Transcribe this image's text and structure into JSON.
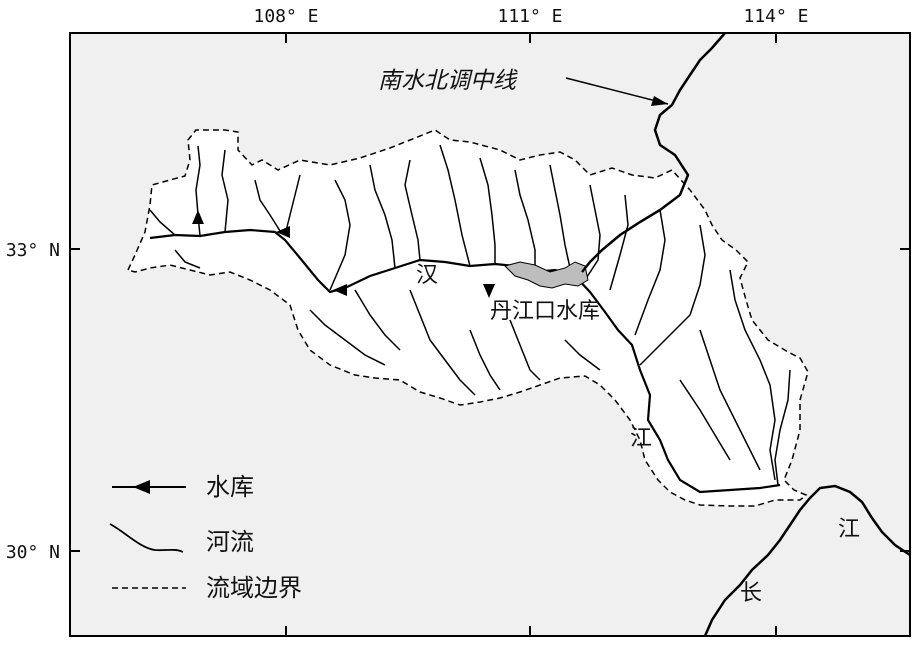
{
  "colors": {
    "frame_fill": "#f0f0f0",
    "basin_fill": "#ffffff",
    "river": "#000000",
    "reservoir_fill": "#bdbdbd"
  },
  "axes": {
    "lon_ticks": [
      "108° E",
      "111° E",
      "114° E"
    ],
    "lat_ticks": [
      "33° N",
      "30° N"
    ]
  },
  "labels": {
    "route": "南水北调中线",
    "han": "汉",
    "reservoir": "丹江口水库",
    "jiang_left": "江",
    "jiang_right": "江",
    "chang": "长"
  },
  "legend": {
    "reservoir": "水库",
    "river": "河流",
    "boundary": "流域边界"
  },
  "icons": {
    "reservoir_marker": "triangle-arrow-icon",
    "river_symbol": "curvy-line-icon",
    "boundary_symbol": "dashed-line-icon"
  }
}
